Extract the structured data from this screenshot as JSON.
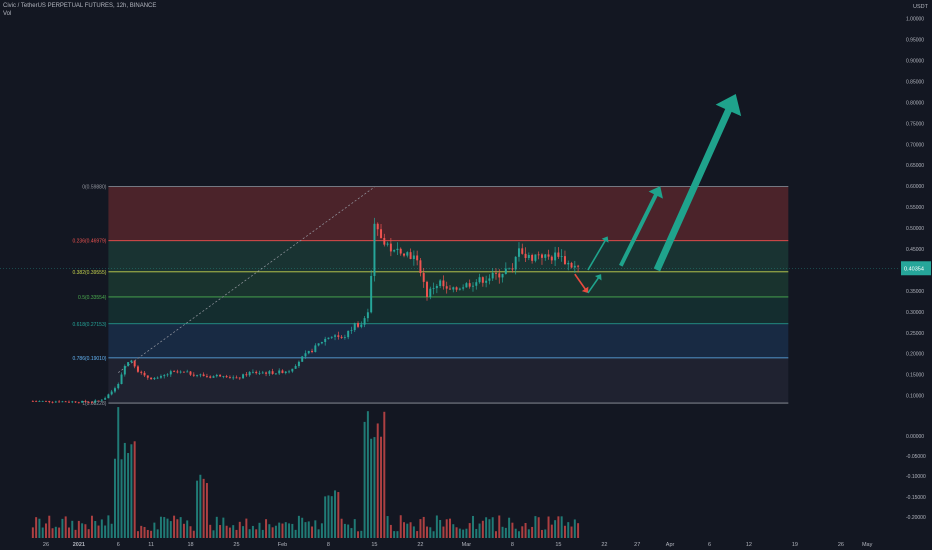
{
  "header": {
    "title": "Civic / TetherUS PERPETUAL FUTURES, 12h, BINANCE",
    "volume_label": "Vol",
    "currency": "USDT"
  },
  "colors": {
    "background": "#131722",
    "up": "#26a69a",
    "down": "#ef5350",
    "text": "#b2b5be",
    "price_tag": "#26a69a",
    "arrow_up": "#1fa38c",
    "arrow_down": "#e84a3f"
  },
  "chart_data": {
    "type": "candlestick",
    "symbol": "CVC/USDT perpetual",
    "timeframe": "12h",
    "price_axis": {
      "ylim": [
        0.08,
        1.03
      ],
      "ticks": [
        1.0,
        0.95,
        0.9,
        0.85,
        0.8,
        0.75,
        0.7,
        0.65,
        0.6,
        0.55,
        0.5,
        0.45,
        0.4,
        0.35,
        0.3,
        0.25,
        0.2,
        0.15,
        0.1
      ],
      "tick_labels": [
        "1.00000",
        "0.95000",
        "0.90000",
        "0.85000",
        "0.80000",
        "0.75000",
        "0.70000",
        "0.65000",
        "0.60000",
        "0.55000",
        "0.50000",
        "0.45000",
        "0.40000",
        "0.35000",
        "0.30000",
        "0.25000",
        "0.20000",
        "0.15000",
        "0.10000"
      ],
      "last_price": 0.404,
      "last_price_label": "0.40354"
    },
    "volume_axis": {
      "tick_labels": [
        "0.00000",
        "-0.05000",
        "-0.10000",
        "-0.15000",
        "-0.20000"
      ]
    },
    "time_axis": {
      "labels": [
        "26",
        "2021",
        "6",
        "11",
        "18",
        "25",
        "Feb",
        "8",
        "15",
        "22",
        "Mar",
        "8",
        "15",
        "22",
        "27",
        "Apr",
        "6",
        "12",
        "19",
        "26",
        "May"
      ],
      "label_days": [
        -5,
        0,
        6,
        11,
        17,
        24,
        31,
        38,
        45,
        52,
        59,
        66,
        73,
        80,
        85,
        90,
        96,
        102,
        109,
        116,
        120
      ]
    },
    "fibonacci": [
      {
        "level": "0",
        "price": 0.5988,
        "label": "0(0.59880)"
      },
      {
        "level": "0.236",
        "price": 0.46979,
        "label": "0.236(0.46979)"
      },
      {
        "level": "0.382",
        "price": 0.39555,
        "label": "0.382(0.39555)"
      },
      {
        "level": "0.5",
        "price": 0.33554,
        "label": "0.5(0.33554)"
      },
      {
        "level": "0.618",
        "price": 0.27153,
        "label": "0.618(0.27153)"
      },
      {
        "level": "0.786",
        "price": 0.1901,
        "label": "0.786(0.19010)"
      },
      {
        "level": "1",
        "price": 0.08228,
        "label": "1(0.08228)"
      }
    ],
    "fib_zone_colors": [
      "#7a2e31",
      "#1f4a40",
      "#1f4a38",
      "#16403a",
      "#1e3a5f",
      "#2a2c3c"
    ],
    "fib_line_colors": [
      "#9598a1",
      "#ef5350",
      "#c7d44e",
      "#4caf50",
      "#26a69a",
      "#64b5f6",
      "#9598a1"
    ],
    "trend_line": {
      "from": {
        "day": 6,
        "price": 0.155
      },
      "to": {
        "day": 45,
        "price": 0.598
      }
    },
    "anchor": {
      "days": [
        -7,
        2,
        3,
        4,
        5,
        6,
        7,
        8,
        9,
        10,
        12,
        14,
        16,
        18,
        20,
        22,
        24,
        26,
        28,
        30,
        32,
        34,
        36,
        37,
        38,
        39,
        40,
        41,
        42,
        43,
        44,
        44.5,
        45,
        46,
        47,
        48,
        49,
        50,
        51,
        52,
        53,
        54,
        55,
        56,
        57,
        58,
        60,
        62,
        63,
        64,
        65,
        66,
        67,
        68,
        69,
        70,
        71,
        72,
        73,
        74,
        75,
        76
      ],
      "prices": [
        0.087,
        0.085,
        0.088,
        0.095,
        0.11,
        0.13,
        0.175,
        0.185,
        0.16,
        0.145,
        0.14,
        0.155,
        0.155,
        0.15,
        0.145,
        0.15,
        0.14,
        0.155,
        0.155,
        0.155,
        0.16,
        0.19,
        0.215,
        0.23,
        0.24,
        0.245,
        0.235,
        0.25,
        0.27,
        0.27,
        0.3,
        0.38,
        0.5,
        0.48,
        0.46,
        0.44,
        0.45,
        0.44,
        0.43,
        0.4,
        0.34,
        0.36,
        0.37,
        0.35,
        0.35,
        0.36,
        0.37,
        0.38,
        0.385,
        0.39,
        0.4,
        0.395,
        0.46,
        0.43,
        0.43,
        0.44,
        0.43,
        0.43,
        0.44,
        0.42,
        0.41,
        0.404
      ]
    },
    "projections": [
      {
        "kind": "down",
        "from": {
          "day": 75.5,
          "price": 0.39
        },
        "to": {
          "day": 77.5,
          "price": 0.345
        }
      },
      {
        "kind": "up",
        "from": {
          "day": 77.5,
          "price": 0.345
        },
        "to": {
          "day": 79.5,
          "price": 0.39
        }
      },
      {
        "kind": "up",
        "from": {
          "day": 77.5,
          "price": 0.4
        },
        "to": {
          "day": 80.5,
          "price": 0.48
        }
      },
      {
        "kind": "up",
        "from": {
          "day": 82.5,
          "price": 0.41
        },
        "to": {
          "day": 88.5,
          "price": 0.6
        }
      },
      {
        "kind": "up_big",
        "from": {
          "day": 88,
          "price": 0.4
        },
        "to": {
          "day": 100,
          "price": 0.82
        }
      }
    ]
  }
}
